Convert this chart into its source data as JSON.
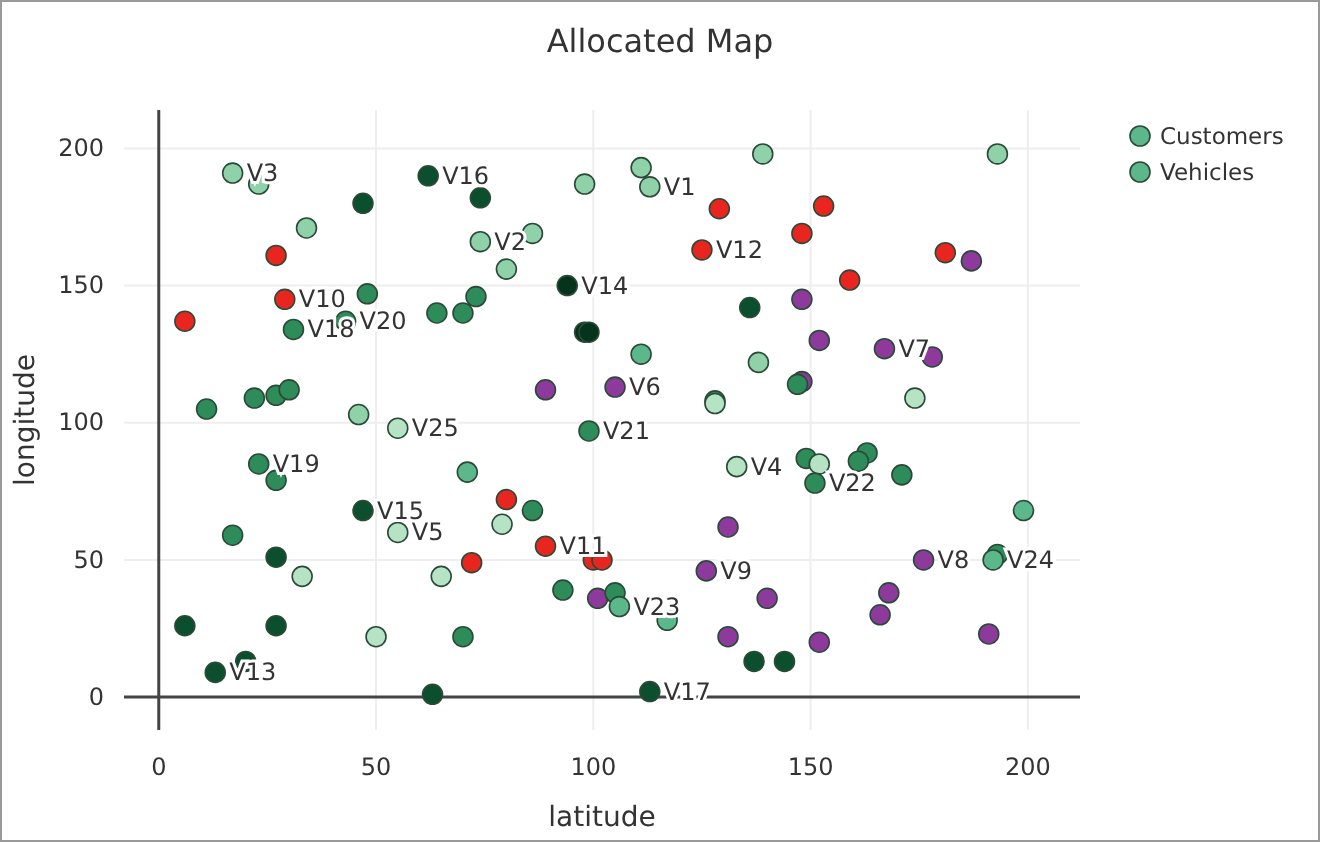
{
  "chart_data": {
    "type": "scatter",
    "title": "Allocated Map",
    "xlabel": "latitude",
    "ylabel": "longitude",
    "xlim": [
      -8,
      212
    ],
    "ylim": [
      -12,
      214
    ],
    "xticks": [
      0,
      50,
      100,
      150,
      200
    ],
    "yticks": [
      0,
      50,
      100,
      150,
      200
    ],
    "grid": true,
    "legend": "top right",
    "marker": "circle",
    "series": [
      {
        "name": "Customers",
        "color": "#5cb88a",
        "x": [
          23,
          47,
          74,
          34,
          86,
          80,
          27,
          6,
          48,
          64,
          70,
          73,
          98,
          99,
          89,
          11,
          22,
          27,
          30,
          46,
          111,
          98,
          139,
          193,
          129,
          153,
          148,
          181,
          187,
          159,
          136,
          148,
          152,
          178,
          111,
          138,
          128,
          128,
          148,
          147,
          174,
          27,
          71,
          80,
          86,
          79,
          17,
          27,
          33,
          65,
          72,
          100,
          102,
          93,
          101,
          6,
          27,
          50,
          70,
          20,
          63,
          149,
          152,
          163,
          161,
          171,
          199,
          131,
          193,
          105,
          117,
          140,
          168,
          166,
          131,
          152,
          191,
          137,
          144
        ],
        "values": [
          187,
          180,
          182,
          171,
          169,
          156,
          161,
          137,
          147,
          140,
          140,
          146,
          133,
          133,
          112,
          105,
          109,
          110,
          112,
          103,
          193,
          187,
          198,
          198,
          178,
          179,
          169,
          162,
          159,
          152,
          142,
          145,
          130,
          124,
          125,
          122,
          108,
          107,
          115,
          114,
          109,
          79,
          82,
          72,
          68,
          63,
          59,
          51,
          44,
          44,
          49,
          50,
          50,
          39,
          36,
          26,
          26,
          22,
          22,
          13,
          1,
          87,
          85,
          89,
          86,
          81,
          68,
          62,
          52,
          38,
          28,
          36,
          38,
          30,
          22,
          20,
          23,
          13,
          13
        ],
        "colors": [
          "#8fd1a8",
          "#0b4f2e",
          "#0b4f2e",
          "#8fd1a8",
          "#8fd1a8",
          "#8fd1a8",
          "#e8261f",
          "#e8261f",
          "#2e8b5a",
          "#2e8b5a",
          "#2e8b5a",
          "#2e8b5a",
          "#06331c",
          "#06331c",
          "#8e3a9d",
          "#2e8b5a",
          "#2e8b5a",
          "#2e8b5a",
          "#2e8b5a",
          "#8fd1a8",
          "#8fd1a8",
          "#8fd1a8",
          "#8fd1a8",
          "#8fd1a8",
          "#e8261f",
          "#e8261f",
          "#e8261f",
          "#e8261f",
          "#8e3a9d",
          "#e8261f",
          "#0b4f2e",
          "#8e3a9d",
          "#8e3a9d",
          "#8e3a9d",
          "#5cb88a",
          "#8fd1a8",
          "#2e8b5a",
          "#b5e3c4",
          "#8e3a9d",
          "#2e8b5a",
          "#b5e3c4",
          "#2e8b5a",
          "#5cb88a",
          "#e8261f",
          "#2e8b5a",
          "#b5e3c4",
          "#2e8b5a",
          "#0b4f2e",
          "#b5e3c4",
          "#b5e3c4",
          "#e8261f",
          "#e8261f",
          "#e8261f",
          "#2e8b5a",
          "#8e3a9d",
          "#0b4f2e",
          "#0b4f2e",
          "#b5e3c4",
          "#2e8b5a",
          "#0b4f2e",
          "#0b4f2e",
          "#2e8b5a",
          "#b5e3c4",
          "#2e8b5a",
          "#2e8b5a",
          "#2e8b5a",
          "#5cb88a",
          "#8e3a9d",
          "#2e8b5a",
          "#2e8b5a",
          "#5cb88a",
          "#8e3a9d",
          "#8e3a9d",
          "#8e3a9d",
          "#8e3a9d",
          "#8e3a9d",
          "#8e3a9d",
          "#0b4f2e",
          "#0b4f2e"
        ]
      },
      {
        "name": "Vehicles",
        "color": "#5cb88a",
        "x": [
          113,
          74,
          17,
          133,
          55,
          105,
          167,
          176,
          126,
          29,
          89,
          125,
          13,
          94,
          47,
          62,
          113,
          31,
          23,
          43,
          99,
          151,
          106,
          192,
          55
        ],
        "values": [
          186,
          166,
          191,
          84,
          60,
          113,
          127,
          50,
          46,
          145,
          55,
          163,
          9,
          150,
          68,
          190,
          2,
          134,
          85,
          137,
          97,
          78,
          33,
          50,
          98
        ],
        "colors": [
          "#8fd1a8",
          "#8fd1a8",
          "#8fd1a8",
          "#b5e3c4",
          "#b5e3c4",
          "#8e3a9d",
          "#8e3a9d",
          "#8e3a9d",
          "#8e3a9d",
          "#e8261f",
          "#e8261f",
          "#e8261f",
          "#0b4f2e",
          "#06331c",
          "#0b4f2e",
          "#0b4f2e",
          "#0b4f2e",
          "#2e8b5a",
          "#2e8b5a",
          "#2e8b5a",
          "#2e8b5a",
          "#2e8b5a",
          "#5cb88a",
          "#5cb88a",
          "#b5e3c4"
        ],
        "value_labels": [
          "V1",
          "V2",
          "V3",
          "V4",
          "V5",
          "V6",
          "V7",
          "V8",
          "V9",
          "V10",
          "V11",
          "V12",
          "V13",
          "V14",
          "V15",
          "V16",
          "V17",
          "V18",
          "V19",
          "V20",
          "V21",
          "V22",
          "V23",
          "V24",
          "V25"
        ]
      }
    ]
  }
}
